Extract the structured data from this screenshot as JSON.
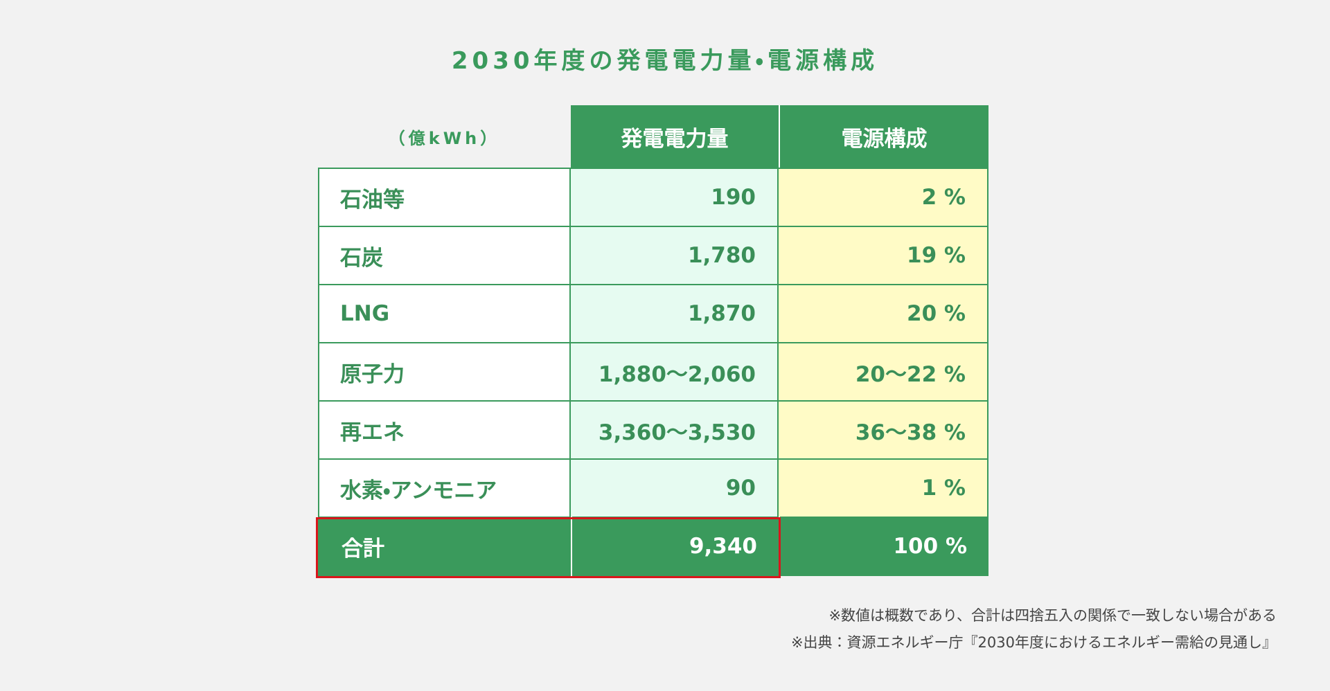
{
  "title": "2030年度の発電電力量・電源構成",
  "table": {
    "header": [
      "（億kWh）",
      "発電電力量",
      "電源構成"
    ],
    "rows": [
      [
        "石油等",
        "190",
        "2 %"
      ],
      [
        "石炭",
        "1,780",
        "19 %"
      ],
      [
        "LNG",
        "1,870",
        "20 %"
      ],
      [
        "原子力",
        "1,880～2,060",
        "20～22 %"
      ],
      [
        "再エネ",
        "3,360～3,530",
        "36～38 %"
      ],
      [
        "水素・アンモニア",
        "90",
        "1 %"
      ]
    ],
    "total": [
      "合計",
      "9,340",
      "100 %"
    ]
  },
  "notes": [
    "※数値は概数であり、合計は四捨五入の関係で一致しない場合がある",
    "※出典：資源エネルギー庁『2030年度におけるエネルギー需給の見通し』"
  ]
}
